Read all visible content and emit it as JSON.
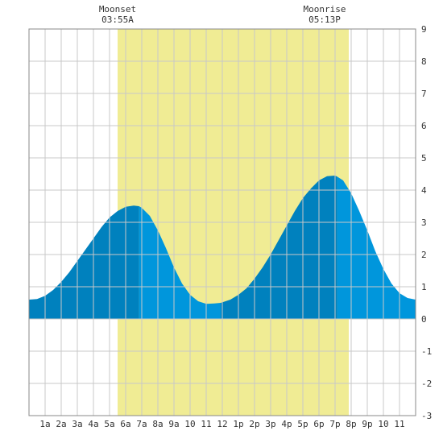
{
  "chart_data": {
    "type": "area",
    "x_tick_labels": [
      "1a",
      "2a",
      "3a",
      "4a",
      "5a",
      "6a",
      "7a",
      "8a",
      "9a",
      "10",
      "11",
      "12",
      "1p",
      "2p",
      "3p",
      "4p",
      "5p",
      "6p",
      "7p",
      "8p",
      "9p",
      "10",
      "11"
    ],
    "xlim_hours": [
      0,
      24
    ],
    "ylim": [
      -3,
      9
    ],
    "y_ticks": [
      9,
      8,
      7,
      6,
      5,
      4,
      3,
      2,
      1,
      0,
      -1,
      -2,
      -3
    ],
    "grid": true,
    "series": [
      {
        "x_hours": [
          0,
          0.5,
          1,
          1.5,
          2,
          2.5,
          3,
          3.5,
          4,
          4.5,
          5,
          5.5,
          6,
          6.5,
          6.83,
          7,
          7.5,
          8,
          8.5,
          9,
          9.5,
          10,
          10.5,
          11,
          11.5,
          11.9,
          12.5,
          13,
          13.5,
          14,
          14.5,
          15,
          15.5,
          16,
          16.5,
          17,
          17.5,
          18,
          18.5,
          19,
          19.13,
          19.5,
          20,
          20.5,
          21,
          21.5,
          22,
          22.5,
          23,
          23.5,
          24
        ],
        "y_ft": [
          0.6,
          0.62,
          0.72,
          0.9,
          1.15,
          1.45,
          1.8,
          2.15,
          2.5,
          2.85,
          3.15,
          3.35,
          3.48,
          3.52,
          3.5,
          3.45,
          3.2,
          2.75,
          2.2,
          1.6,
          1.1,
          0.75,
          0.55,
          0.47,
          0.48,
          0.5,
          0.6,
          0.75,
          0.95,
          1.25,
          1.6,
          2.0,
          2.45,
          2.9,
          3.35,
          3.75,
          4.05,
          4.3,
          4.43,
          4.45,
          4.42,
          4.3,
          3.9,
          3.35,
          2.75,
          2.1,
          1.55,
          1.1,
          0.8,
          0.65,
          0.6
        ]
      }
    ],
    "extremes_hours": [
      6.83,
      11.9,
      19.13
    ],
    "daylight_hours": [
      5.5,
      19.85
    ],
    "annotations": [
      {
        "label": "Moonset",
        "time": "03:55A",
        "x_hours": 5.5
      },
      {
        "label": "Moonrise",
        "time": "05:13P",
        "x_hours": 18.35
      }
    ],
    "colors": {
      "daylight": "#f0ec94",
      "rising": "#0081be",
      "falling": "#0096dc",
      "grid": "#c8c8c8"
    }
  }
}
